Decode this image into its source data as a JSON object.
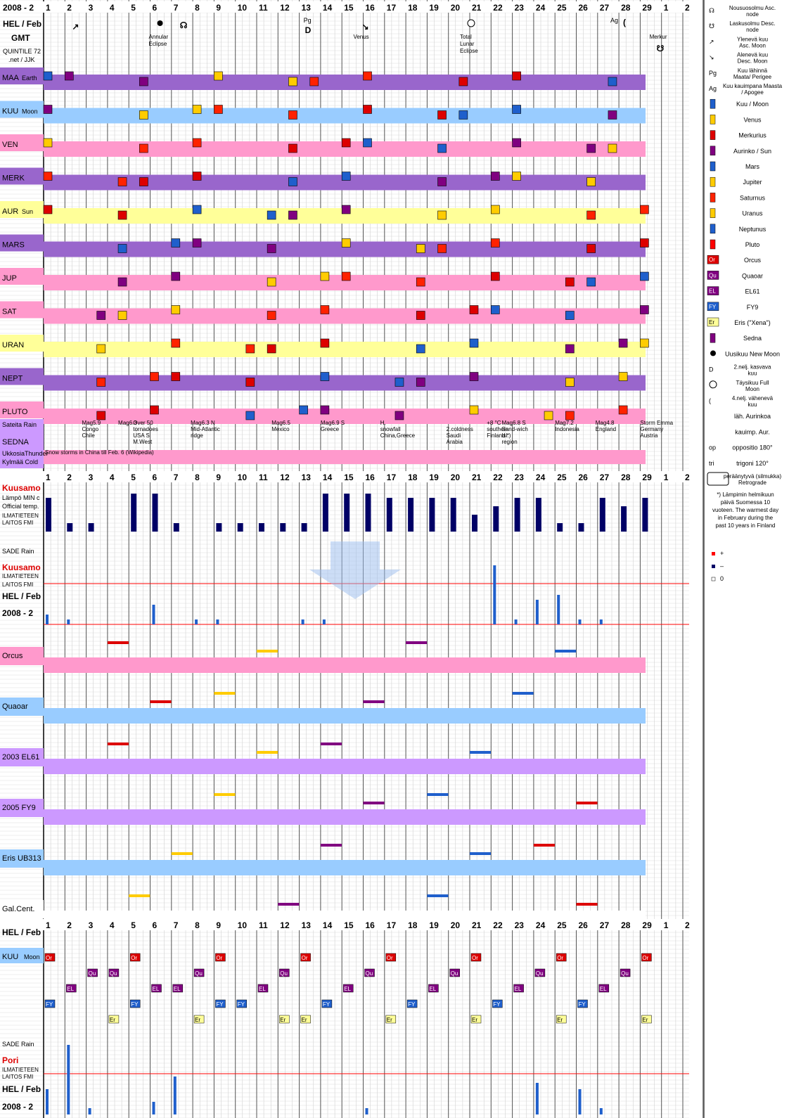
{
  "header": {
    "title": "2008 - 2",
    "hel_feb": "HEL / Feb",
    "gmt": "GMT",
    "quintile": "QUINTILE 72",
    "credit": ".net / JJK"
  },
  "days": [
    "1",
    "2",
    "3",
    "4",
    "5",
    "6",
    "7",
    "8",
    "9",
    "10",
    "11",
    "12",
    "13",
    "14",
    "15",
    "16",
    "17",
    "18",
    "19",
    "20",
    "21",
    "22",
    "23",
    "24",
    "25",
    "26",
    "27",
    "28",
    "29",
    "1",
    "2"
  ],
  "top_events": [
    {
      "day": 2.2,
      "text": "",
      "glyph": "asc-moon"
    },
    {
      "day": 6.2,
      "text": "Annular Eclipse",
      "glyph": "new-moon"
    },
    {
      "day": 7.0,
      "text": "",
      "glyph": "asc-node"
    },
    {
      "day": 13.2,
      "text": "Pg",
      "glyph": "first-quarter"
    },
    {
      "day": 15.8,
      "text": "Venus",
      "glyph": "desc-moon"
    },
    {
      "day": 20.8,
      "text": "Total Lunar Eclipse",
      "glyph": "full-moon"
    },
    {
      "day": 27.6,
      "text": "Ag",
      "glyph": "last-quarter"
    },
    {
      "day": 29.7,
      "text": "Merkur",
      "glyph": "desc-node"
    }
  ],
  "planet_rows": [
    {
      "label": "MAA",
      "sub": "Earth",
      "color": "#9966cc"
    },
    {
      "label": "KUU",
      "sub": "Moon",
      "color": "#99ccff"
    },
    {
      "label": "VEN",
      "sub": "",
      "color": "#ff99cc"
    },
    {
      "label": "MERK",
      "sub": "",
      "color": "#9966cc"
    },
    {
      "label": "AUR",
      "sub": "Sun",
      "color": "#ffff99"
    },
    {
      "label": "MARS",
      "sub": "",
      "color": "#9966cc"
    },
    {
      "label": "JUP",
      "sub": "",
      "color": "#ff99cc"
    },
    {
      "label": "SAT",
      "sub": "",
      "color": "#ff99cc"
    },
    {
      "label": "URAN",
      "sub": "",
      "color": "#ffff99"
    },
    {
      "label": "NEPT",
      "sub": "",
      "color": "#9966cc"
    },
    {
      "label": "PLUTO",
      "sub": "",
      "color": "#ff99cc"
    }
  ],
  "sateita": "Sateita  Rain",
  "sedna": "SEDNA",
  "ukkosia": "UkkosiaThunder",
  "kylmaa": "Kylmää Cold",
  "news": [
    "Mag5.9 Congo Chile",
    "Mag6.3",
    "Over 50 tornadoes USA S M.West",
    "Mag6.3 N Mid-Atlantic ridge",
    "Mag6.5 Mexico",
    "Mag6.9 S Greece",
    "H. snowfall China,Greece",
    "2.coldness Saudi Arabia",
    "Mag6.8 S Sand-wich Isl. region",
    "Mag7.2 Indonesia",
    "Mag4.8 England",
    "Storm Emma Germany Austria",
    "+8 °C southern Finland *)",
    "Snow storms in China till Feb. 6 (Wikipedia)"
  ],
  "weather_labels": {
    "kuusamo": "Kuusamo",
    "lampo": "Lämpö MIN c",
    "official": "Official temp.",
    "ilmatieteen": "ILMATIETEEN",
    "laitos": "LAITOS  FMI",
    "sade": "SADE Rain",
    "pori": "Pori",
    "warm_note": "*) Lämpimin helmikuun päivä Suomessa 10 vuoteen. The warmest day in February during the past 10 years in Finland"
  },
  "transit_rows": [
    {
      "label": "Orcus",
      "color": "#ff99cc"
    },
    {
      "label": "Quaoar",
      "color": "#99ccff"
    },
    {
      "label": "2003 EL61",
      "color": "#cc99ff"
    },
    {
      "label": "2005 FY9",
      "color": "#cc99ff"
    },
    {
      "label": "Eris UB313",
      "color": "#99ccff"
    },
    {
      "label": "Gal.Cent.",
      "color": "#ffffff"
    }
  ],
  "legend": [
    {
      "icon": "asc-node",
      "text": "Nousuosolmu Asc. node"
    },
    {
      "icon": "desc-node",
      "text": "Laskusolmu Desc. node"
    },
    {
      "icon": "asc-moon",
      "text": "Ylenevä kuu Asc. Moon"
    },
    {
      "icon": "desc-moon",
      "text": "Alenevä kuu Desc. Moon"
    },
    {
      "icon": "Pg",
      "text": "Kuu lähinnä Maata/ Perigee"
    },
    {
      "icon": "Ag",
      "text": "Kuu kauimpana Maasta / Apogee"
    },
    {
      "icon": "#1f5fcc",
      "text": "Kuu / Moon"
    },
    {
      "icon": "#ffcc00",
      "text": "Venus"
    },
    {
      "icon": "#dd0000",
      "text": "Merkurius"
    },
    {
      "icon": "#800080",
      "text": "Aurinko / Sun"
    },
    {
      "icon": "#1f5fcc",
      "text": "Mars"
    },
    {
      "icon": "#ffcc00",
      "text": "Jupiter"
    },
    {
      "icon": "#ff2200",
      "text": "Saturnus"
    },
    {
      "icon": "#ffcc00",
      "text": "Uranus"
    },
    {
      "icon": "#1f5fcc",
      "text": "Neptunus"
    },
    {
      "icon": "#ff0000",
      "text": "Pluto"
    },
    {
      "icon": "Or",
      "text": "Orcus"
    },
    {
      "icon": "Qu",
      "text": "Quaoar"
    },
    {
      "icon": "EL",
      "text": "EL61"
    },
    {
      "icon": "FY",
      "text": "FY9"
    },
    {
      "icon": "Er",
      "text": "Eris (\"Xena\")"
    },
    {
      "icon": "#800080",
      "text": "Sedna"
    },
    {
      "icon": "new-moon",
      "text": "Uusikuu New Moon"
    },
    {
      "icon": "first-quarter",
      "text": "2.nelj. kasvava kuu"
    },
    {
      "icon": "full-moon",
      "text": "Täysikuu Full Moon"
    },
    {
      "icon": "last-quarter",
      "text": "4.nelj. vähenevä kuu"
    },
    {
      "icon": "perihelion",
      "text": "läh. Aurinkoa"
    },
    {
      "icon": "aphelion",
      "text": "kauimp. Aur."
    },
    {
      "icon": "op",
      "text": "oppositio 180°"
    },
    {
      "icon": "tri",
      "text": "trigoni 120°"
    },
    {
      "icon": "retro",
      "text": "peräänytyvä (silmukka) Retrograde"
    }
  ],
  "bottom_moon_labels": [
    "Or",
    "Qu",
    "EL",
    "FY",
    "Er"
  ],
  "chart_data": {
    "type": "bar",
    "title": "2008 - 2",
    "categories": [
      "1",
      "2",
      "3",
      "4",
      "5",
      "6",
      "7",
      "8",
      "9",
      "10",
      "11",
      "12",
      "13",
      "14",
      "15",
      "16",
      "17",
      "18",
      "19",
      "20",
      "21",
      "22",
      "23",
      "24",
      "25",
      "26",
      "27",
      "28",
      "29"
    ],
    "series": [
      {
        "name": "Kuusamo Lämpö MIN",
        "values": [
          8,
          2,
          2,
          0,
          9,
          9,
          2,
          0,
          2,
          2,
          2,
          2,
          2,
          9,
          9,
          9,
          8,
          8,
          8,
          8,
          4,
          6,
          8,
          8,
          2,
          2,
          8,
          6,
          8
        ]
      },
      {
        "name": "Kuusamo SADE Rain",
        "values": [
          2,
          1,
          0,
          0,
          0,
          4,
          0,
          1,
          1,
          0,
          0,
          0,
          1,
          1,
          0,
          0,
          0,
          0,
          0,
          0,
          0,
          12,
          1,
          5,
          6,
          1,
          1,
          0,
          0
        ]
      },
      {
        "name": "Pori SADE Rain",
        "values": [
          4,
          11,
          1,
          0,
          0,
          2,
          6,
          0,
          0,
          0,
          0,
          0,
          0,
          0,
          0,
          1,
          0,
          0,
          0,
          0,
          0,
          0,
          0,
          5,
          0,
          4,
          1,
          0,
          0
        ]
      }
    ]
  }
}
